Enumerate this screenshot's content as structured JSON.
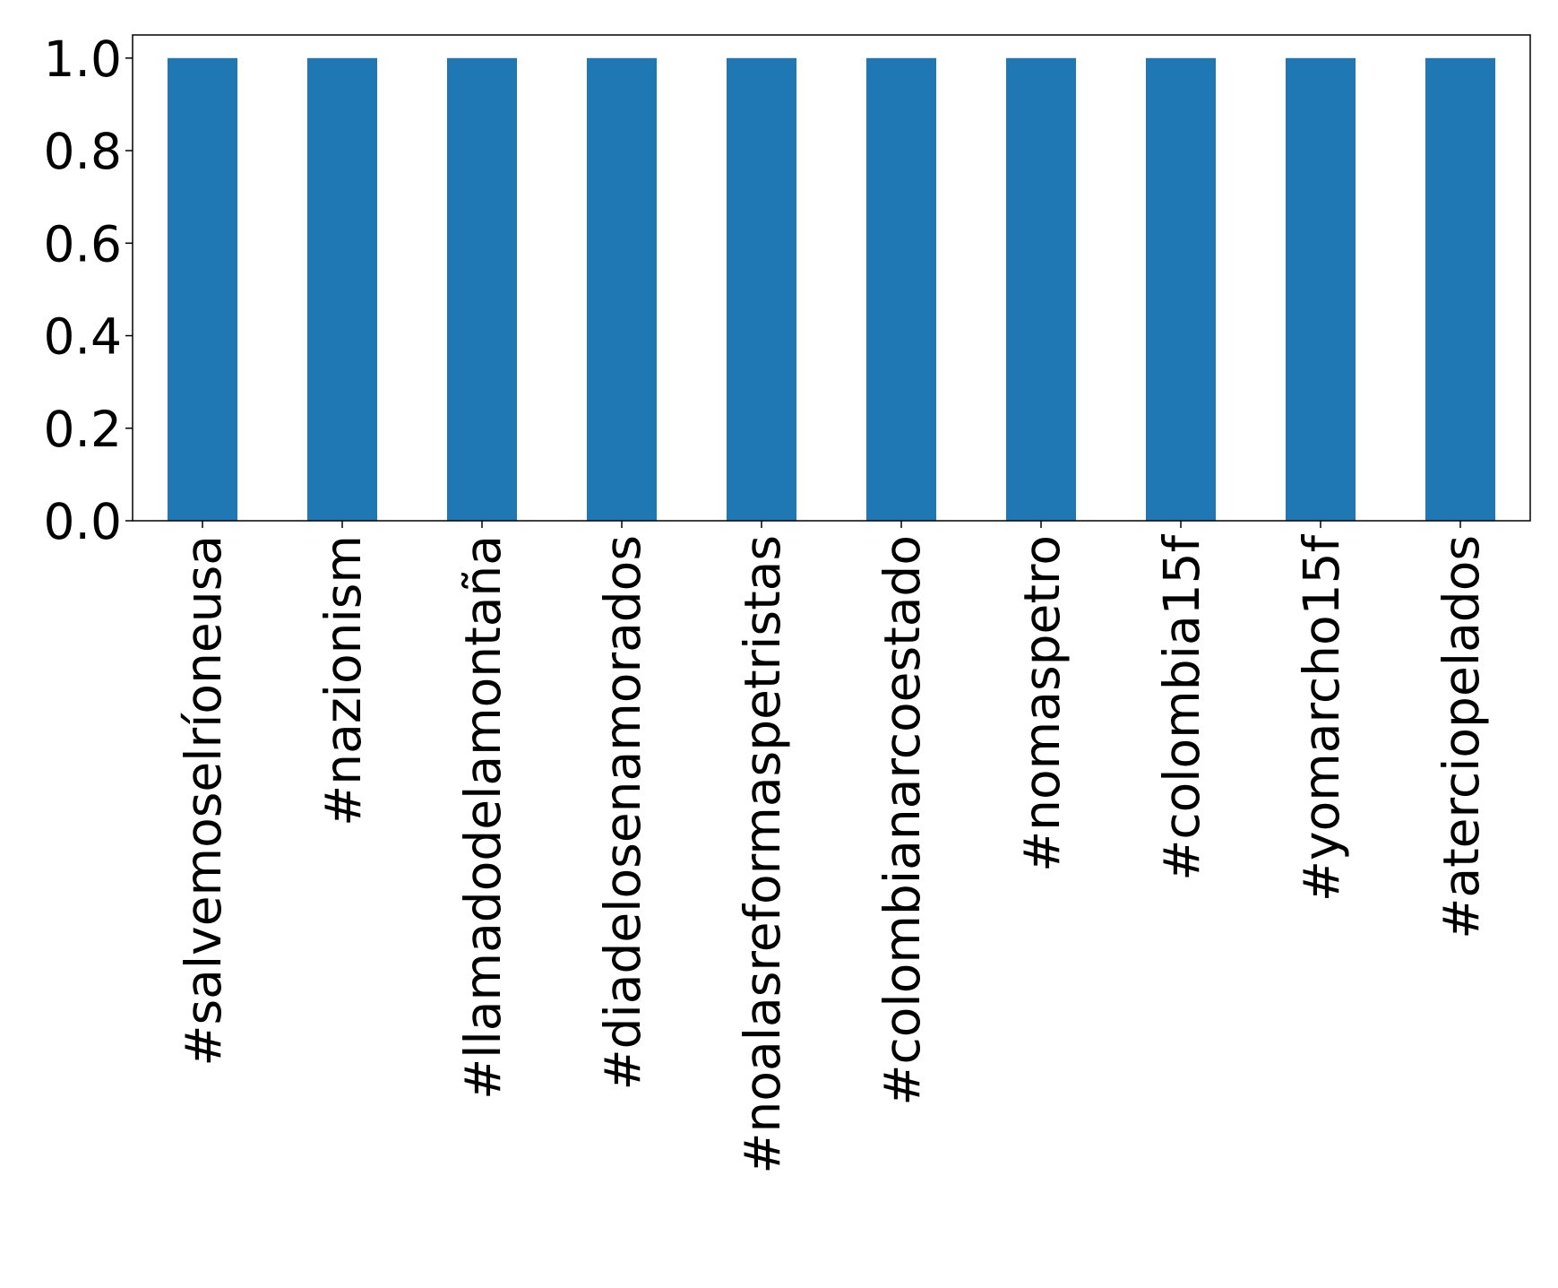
{
  "chart_data": {
    "type": "bar",
    "categories": [
      "#salvemoselríoneusa",
      "#nazionism",
      "#llamadodelamontaña",
      "#diadelosenamorados",
      "#noalasreformaspetristas",
      "#colombianarcoestado",
      "#nomaspetro",
      "#colombia15f",
      "#yomarcho15f",
      "#aterciopelados"
    ],
    "values": [
      1,
      1,
      1,
      1,
      1,
      1,
      1,
      1,
      1,
      1
    ],
    "color": "#1f77b4",
    "ylim": [
      0,
      1.05
    ],
    "yticks": [
      {
        "value": 0,
        "label": "0.0"
      },
      {
        "value": 0.2,
        "label": "0.2"
      },
      {
        "value": 0.4,
        "label": "0.4"
      },
      {
        "value": 0.6,
        "label": "0.6"
      },
      {
        "value": 0.8,
        "label": "0.8"
      },
      {
        "value": 1,
        "label": "1.0"
      }
    ],
    "grid": false
  }
}
